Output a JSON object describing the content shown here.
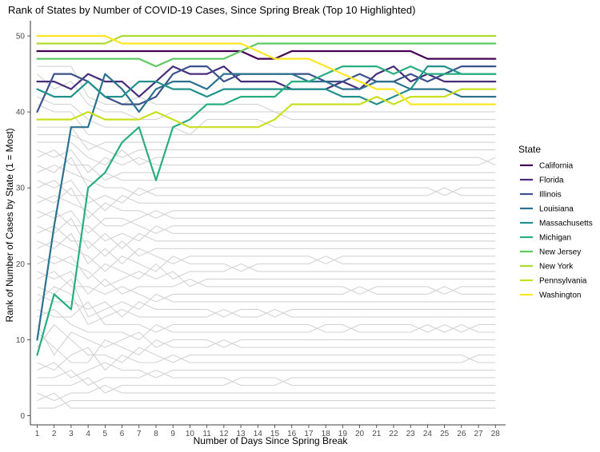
{
  "chart_data": {
    "type": "line",
    "title": "Rank of States by Number of COVID-19 Cases, Since Spring Break (Top 10 Highlighted)",
    "xlabel": "Number of Days Since Spring Break",
    "ylabel": "Rank of Number of Cases by State (1 = Most)",
    "x": [
      1,
      2,
      3,
      4,
      5,
      6,
      7,
      8,
      9,
      10,
      11,
      12,
      13,
      14,
      15,
      16,
      17,
      18,
      19,
      20,
      21,
      22,
      23,
      24,
      25,
      26,
      27,
      28
    ],
    "xlim": [
      0.6,
      28.6
    ],
    "ylim": [
      -1.2,
      52
    ],
    "y_ticks": [
      0,
      10,
      20,
      30,
      40,
      50
    ],
    "grid": false,
    "legend": {
      "title": "State",
      "position": "right"
    },
    "series": [
      {
        "name": "California",
        "color": "#440154",
        "values": [
          48,
          48,
          48,
          48,
          48,
          48,
          48,
          48,
          48,
          48,
          48,
          48,
          48,
          47,
          47,
          48,
          48,
          48,
          48,
          48,
          48,
          48,
          48,
          47,
          47,
          47,
          47,
          47
        ]
      },
      {
        "name": "Florida",
        "color": "#472d7b",
        "values": [
          44,
          44,
          43,
          45,
          44,
          44,
          42,
          44,
          46,
          45,
          45,
          46,
          44,
          44,
          44,
          43,
          43,
          43,
          44,
          43,
          45,
          46,
          44,
          45,
          44,
          44,
          44,
          44
        ]
      },
      {
        "name": "Illinois",
        "color": "#3b528b",
        "values": [
          40,
          45,
          45,
          44,
          42,
          41,
          41,
          42,
          45,
          46,
          46,
          44,
          45,
          45,
          45,
          45,
          45,
          44,
          44,
          45,
          44,
          44,
          45,
          44,
          45,
          46,
          46,
          46
        ]
      },
      {
        "name": "Louisiana",
        "color": "#2c728e",
        "values": [
          10,
          25,
          38,
          38,
          45,
          43,
          40,
          43,
          44,
          44,
          43,
          45,
          45,
          45,
          45,
          45,
          44,
          44,
          43,
          43,
          44,
          44,
          43,
          43,
          43,
          42,
          42,
          42
        ]
      },
      {
        "name": "Massachusetts",
        "color": "#21918c",
        "values": [
          43,
          42,
          42,
          44,
          42,
          42,
          44,
          44,
          43,
          43,
          42,
          43,
          43,
          43,
          43,
          43,
          43,
          43,
          42,
          42,
          41,
          42,
          43,
          46,
          46,
          45,
          45,
          45
        ]
      },
      {
        "name": "Michigan",
        "color": "#28ae80",
        "values": [
          8,
          16,
          14,
          30,
          32,
          36,
          38,
          31,
          38,
          39,
          41,
          41,
          42,
          42,
          42,
          44,
          44,
          45,
          46,
          46,
          46,
          45,
          46,
          45,
          45,
          45,
          45,
          45
        ]
      },
      {
        "name": "New Jersey",
        "color": "#5ec962",
        "values": [
          47,
          47,
          47,
          47,
          47,
          47,
          47,
          46,
          47,
          47,
          47,
          47,
          48,
          49,
          49,
          49,
          49,
          49,
          49,
          49,
          49,
          49,
          49,
          49,
          49,
          49,
          49,
          49
        ]
      },
      {
        "name": "New York",
        "color": "#addc30",
        "values": [
          49,
          49,
          49,
          49,
          49,
          50,
          50,
          50,
          50,
          50,
          50,
          50,
          50,
          50,
          50,
          50,
          50,
          50,
          50,
          50,
          50,
          50,
          50,
          50,
          50,
          50,
          50,
          50
        ]
      },
      {
        "name": "Pennsylvania",
        "color": "#c8e020",
        "values": [
          39,
          39,
          39,
          40,
          39,
          39,
          39,
          40,
          39,
          38,
          38,
          38,
          38,
          38,
          39,
          41,
          41,
          41,
          41,
          41,
          42,
          41,
          42,
          42,
          42,
          43,
          43,
          43
        ]
      },
      {
        "name": "Washington",
        "color": "#fde725",
        "values": [
          50,
          50,
          50,
          50,
          50,
          49,
          49,
          49,
          49,
          49,
          49,
          49,
          49,
          48,
          47,
          47,
          47,
          46,
          45,
          44,
          43,
          43,
          41,
          41,
          41,
          41,
          41,
          41
        ]
      }
    ],
    "background_series": [
      [
        1,
        1,
        2,
        2,
        2,
        2,
        2,
        2,
        2,
        2,
        2,
        2,
        2,
        2,
        2,
        2,
        2,
        2,
        2,
        2,
        2,
        2,
        2,
        2,
        2,
        2,
        2,
        2
      ],
      [
        2,
        3,
        1,
        1,
        1,
        1,
        1,
        1,
        1,
        1,
        1,
        1,
        1,
        1,
        1,
        1,
        1,
        1,
        1,
        1,
        1,
        1,
        1,
        1,
        1,
        1,
        1,
        1
      ],
      [
        3,
        2,
        3,
        3,
        4,
        3,
        3,
        3,
        3,
        3,
        3,
        3,
        3,
        3,
        3,
        3,
        3,
        3,
        3,
        3,
        3,
        3,
        3,
        3,
        3,
        3,
        3,
        3
      ],
      [
        4,
        4,
        4,
        5,
        3,
        4,
        4,
        4,
        4,
        4,
        4,
        4,
        5,
        5,
        5,
        4,
        4,
        4,
        4,
        4,
        4,
        4,
        4,
        4,
        4,
        4,
        4,
        4
      ],
      [
        5,
        5,
        6,
        4,
        5,
        5,
        5,
        6,
        5,
        5,
        5,
        5,
        4,
        4,
        4,
        5,
        5,
        5,
        5,
        5,
        5,
        5,
        5,
        5,
        5,
        5,
        5,
        5
      ],
      [
        6,
        7,
        5,
        6,
        7,
        6,
        6,
        5,
        6,
        6,
        6,
        6,
        6,
        6,
        6,
        6,
        6,
        6,
        6,
        6,
        6,
        6,
        6,
        6,
        6,
        6,
        6,
        6
      ],
      [
        7,
        6,
        8,
        9,
        6,
        8,
        7,
        7,
        8,
        7,
        7,
        7,
        7,
        7,
        7,
        7,
        7,
        7,
        7,
        7,
        7,
        7,
        7,
        7,
        7,
        7,
        8,
        8
      ],
      [
        9,
        12,
        10,
        8,
        8,
        7,
        9,
        8,
        7,
        8,
        8,
        8,
        8,
        8,
        8,
        8,
        8,
        8,
        8,
        8,
        8,
        8,
        8,
        8,
        8,
        8,
        7,
        7
      ],
      [
        11,
        9,
        7,
        7,
        10,
        9,
        8,
        10,
        9,
        9,
        9,
        10,
        9,
        9,
        9,
        9,
        9,
        9,
        9,
        9,
        9,
        9,
        9,
        9,
        9,
        9,
        9,
        9
      ],
      [
        12,
        8,
        11,
        10,
        9,
        10,
        11,
        9,
        10,
        10,
        10,
        9,
        10,
        10,
        10,
        10,
        10,
        10,
        10,
        10,
        10,
        10,
        10,
        10,
        10,
        10,
        10,
        10
      ],
      [
        13,
        14,
        12,
        11,
        11,
        11,
        10,
        12,
        11,
        11,
        11,
        11,
        11,
        11,
        11,
        11,
        11,
        12,
        12,
        11,
        11,
        11,
        11,
        12,
        11,
        12,
        11,
        11
      ],
      [
        14,
        13,
        13,
        15,
        12,
        12,
        12,
        11,
        12,
        12,
        12,
        12,
        12,
        12,
        12,
        12,
        12,
        11,
        11,
        12,
        12,
        12,
        12,
        11,
        12,
        11,
        12,
        12
      ],
      [
        15,
        17,
        16,
        12,
        13,
        14,
        13,
        13,
        13,
        13,
        13,
        14,
        13,
        13,
        14,
        13,
        13,
        13,
        13,
        13,
        13,
        13,
        13,
        13,
        13,
        13,
        13,
        13
      ],
      [
        16,
        15,
        15,
        14,
        15,
        13,
        15,
        14,
        14,
        14,
        14,
        13,
        14,
        14,
        13,
        14,
        14,
        14,
        14,
        14,
        14,
        14,
        14,
        14,
        14,
        14,
        14,
        14
      ],
      [
        17,
        16,
        18,
        13,
        14,
        15,
        14,
        16,
        15,
        15,
        15,
        15,
        15,
        15,
        15,
        15,
        15,
        15,
        15,
        15,
        15,
        15,
        15,
        15,
        15,
        15,
        15,
        15
      ],
      [
        18,
        19,
        17,
        17,
        16,
        17,
        16,
        15,
        16,
        16,
        16,
        16,
        16,
        16,
        16,
        16,
        16,
        16,
        16,
        17,
        16,
        16,
        16,
        16,
        17,
        16,
        16,
        16
      ],
      [
        19,
        18,
        19,
        16,
        18,
        16,
        17,
        17,
        17,
        18,
        17,
        17,
        17,
        17,
        17,
        17,
        17,
        17,
        17,
        16,
        17,
        17,
        17,
        17,
        16,
        17,
        17,
        17
      ],
      [
        20,
        21,
        20,
        19,
        17,
        18,
        19,
        18,
        19,
        17,
        18,
        18,
        18,
        18,
        18,
        18,
        18,
        18,
        18,
        18,
        18,
        18,
        18,
        18,
        18,
        18,
        18,
        18
      ],
      [
        21,
        20,
        21,
        18,
        20,
        19,
        18,
        20,
        18,
        19,
        19,
        19,
        20,
        19,
        19,
        19,
        19,
        19,
        19,
        19,
        19,
        19,
        19,
        19,
        19,
        19,
        19,
        19
      ],
      [
        22,
        23,
        22,
        21,
        19,
        21,
        20,
        19,
        21,
        20,
        20,
        20,
        19,
        20,
        20,
        20,
        20,
        21,
        20,
        20,
        20,
        20,
        20,
        20,
        20,
        20,
        20,
        20
      ],
      [
        23,
        22,
        24,
        20,
        22,
        20,
        22,
        21,
        20,
        21,
        21,
        21,
        21,
        21,
        21,
        21,
        21,
        20,
        21,
        21,
        21,
        21,
        21,
        21,
        21,
        21,
        21,
        21
      ],
      [
        24,
        25,
        23,
        23,
        21,
        23,
        21,
        22,
        22,
        22,
        22,
        22,
        22,
        22,
        22,
        22,
        22,
        22,
        22,
        22,
        22,
        22,
        22,
        22,
        22,
        22,
        22,
        22
      ],
      [
        25,
        24,
        26,
        22,
        24,
        22,
        24,
        23,
        23,
        23,
        23,
        23,
        23,
        23,
        23,
        23,
        23,
        23,
        23,
        23,
        23,
        23,
        23,
        23,
        23,
        23,
        23,
        23
      ],
      [
        26,
        27,
        25,
        25,
        23,
        24,
        23,
        25,
        24,
        24,
        24,
        24,
        24,
        24,
        24,
        24,
        24,
        24,
        24,
        24,
        24,
        24,
        24,
        24,
        24,
        24,
        24,
        24
      ],
      [
        27,
        26,
        27,
        24,
        26,
        26,
        25,
        24,
        25,
        25,
        25,
        25,
        25,
        25,
        25,
        25,
        25,
        25,
        25,
        25,
        25,
        25,
        25,
        25,
        25,
        25,
        25,
        25
      ],
      [
        28,
        29,
        28,
        27,
        25,
        25,
        26,
        27,
        26,
        26,
        26,
        26,
        26,
        26,
        26,
        26,
        26,
        26,
        26,
        26,
        26,
        26,
        26,
        26,
        26,
        26,
        26,
        26
      ],
      [
        29,
        28,
        30,
        26,
        28,
        27,
        27,
        26,
        27,
        27,
        27,
        27,
        27,
        27,
        27,
        27,
        27,
        27,
        27,
        27,
        27,
        27,
        27,
        27,
        27,
        27,
        27,
        27
      ],
      [
        30,
        31,
        29,
        29,
        27,
        29,
        28,
        28,
        28,
        28,
        28,
        28,
        28,
        28,
        28,
        28,
        28,
        28,
        28,
        28,
        28,
        28,
        28,
        28,
        28,
        28,
        28,
        28
      ],
      [
        31,
        30,
        31,
        28,
        29,
        28,
        30,
        29,
        29,
        29,
        29,
        29,
        29,
        29,
        29,
        29,
        29,
        29,
        29,
        29,
        29,
        29,
        29,
        29,
        30,
        29,
        29,
        29
      ],
      [
        32,
        33,
        32,
        31,
        30,
        30,
        29,
        30,
        30,
        30,
        30,
        30,
        30,
        30,
        30,
        30,
        30,
        30,
        30,
        30,
        30,
        30,
        30,
        30,
        29,
        30,
        30,
        30
      ],
      [
        33,
        32,
        34,
        30,
        32,
        31,
        31,
        31,
        31,
        31,
        31,
        31,
        31,
        31,
        31,
        31,
        31,
        31,
        31,
        31,
        31,
        31,
        31,
        31,
        31,
        31,
        31,
        31
      ],
      [
        34,
        35,
        33,
        33,
        31,
        32,
        32,
        32,
        32,
        32,
        32,
        32,
        32,
        32,
        32,
        32,
        32,
        32,
        32,
        32,
        32,
        32,
        32,
        32,
        32,
        32,
        32,
        32
      ],
      [
        35,
        34,
        35,
        32,
        34,
        33,
        34,
        33,
        33,
        33,
        33,
        33,
        33,
        33,
        33,
        33,
        33,
        33,
        33,
        33,
        33,
        33,
        33,
        33,
        33,
        33,
        33,
        34
      ],
      [
        36,
        36,
        36,
        34,
        33,
        35,
        33,
        34,
        34,
        34,
        34,
        34,
        34,
        34,
        34,
        34,
        34,
        34,
        34,
        34,
        34,
        34,
        34,
        34,
        34,
        34,
        34,
        33
      ],
      [
        37,
        37,
        37,
        36,
        35,
        34,
        35,
        35,
        35,
        35,
        35,
        35,
        35,
        35,
        35,
        35,
        35,
        35,
        35,
        35,
        35,
        35,
        35,
        35,
        35,
        35,
        35,
        35
      ],
      [
        38,
        38,
        38,
        35,
        36,
        36,
        36,
        36,
        36,
        36,
        36,
        36,
        36,
        36,
        36,
        36,
        36,
        36,
        36,
        36,
        36,
        36,
        36,
        36,
        36,
        36,
        36,
        36
      ],
      [
        41,
        40,
        40,
        37,
        37,
        37,
        37,
        37,
        37,
        37,
        37,
        37,
        37,
        37,
        37,
        37,
        37,
        37,
        37,
        37,
        37,
        37,
        37,
        37,
        37,
        37,
        37,
        37
      ],
      [
        42,
        41,
        41,
        39,
        38,
        38,
        38,
        38,
        38,
        37,
        39,
        39,
        39,
        39,
        38,
        38,
        38,
        38,
        38,
        38,
        38,
        38,
        38,
        38,
        38,
        38,
        38,
        38
      ],
      [
        45,
        43,
        44,
        41,
        40,
        40,
        39,
        39,
        40,
        40,
        40,
        40,
        40,
        40,
        40,
        40,
        40,
        40,
        40,
        40,
        40,
        40,
        40,
        40,
        40,
        40,
        40,
        40
      ],
      [
        46,
        46,
        46,
        42,
        41,
        41,
        42,
        41,
        41,
        41,
        41,
        41,
        41,
        41,
        40,
        39,
        39,
        39,
        39,
        39,
        39,
        39,
        39,
        39,
        39,
        39,
        39,
        39
      ]
    ]
  }
}
